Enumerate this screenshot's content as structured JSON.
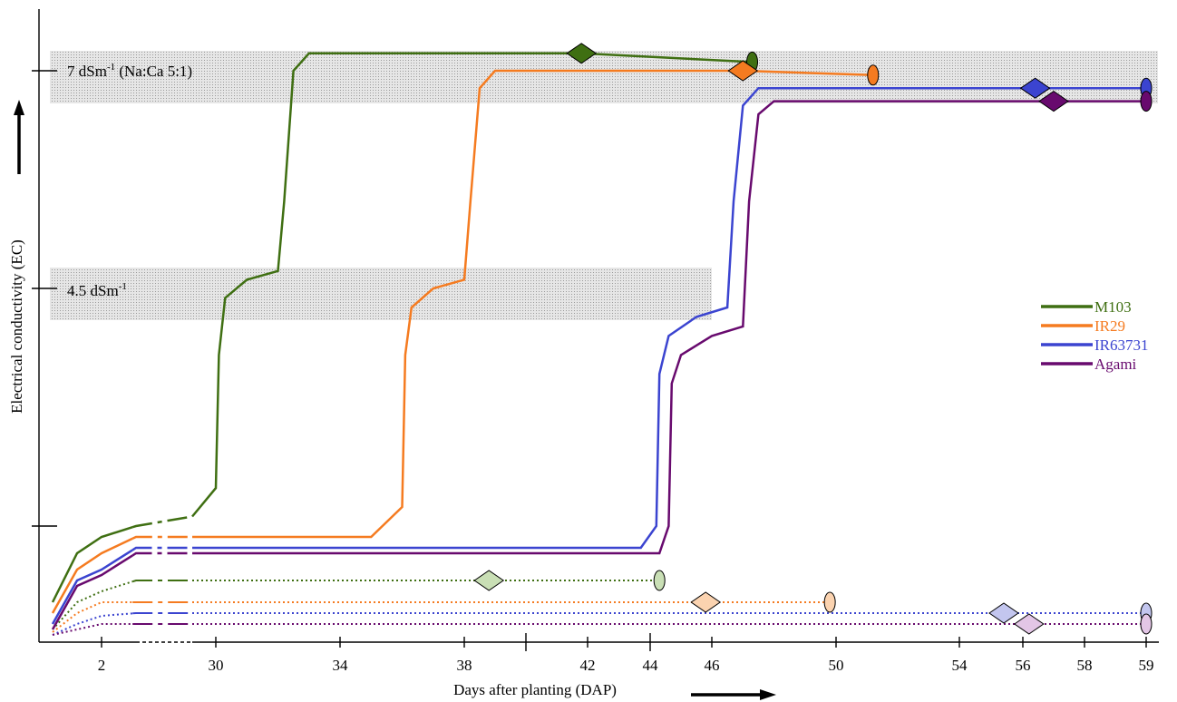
{
  "chart_data": {
    "type": "line",
    "xlabel": "Days after planting (DAP)",
    "ylabel": "Electrical conductivity (EC)",
    "x_ticks": [
      "2",
      "30",
      "34",
      "38",
      "42",
      "44",
      "46",
      "50",
      "54",
      "56",
      "58",
      "59"
    ],
    "bands": [
      {
        "label_main": "7 dSm",
        "label_sup": "-1",
        "label_suffix": " (Na:Ca 5:1)",
        "ec": 7
      },
      {
        "label_main": "4.5 dSm",
        "label_sup": "-1",
        "label_suffix": "",
        "ec": 4.5
      }
    ],
    "legend_placement": "right",
    "series": [
      {
        "name": "M103",
        "color": "#3f6f12",
        "light": "#c9dfb5",
        "stress_curve": [
          [
            0,
            0.6
          ],
          [
            1,
            1.5
          ],
          [
            2,
            1.8
          ],
          [
            3,
            2.0
          ],
          [
            29,
            2.1
          ],
          [
            30,
            2.4
          ],
          [
            30.1,
            3.8
          ],
          [
            30.3,
            4.4
          ],
          [
            31,
            4.6
          ],
          [
            32,
            4.7
          ],
          [
            32.2,
            5.5
          ],
          [
            32.5,
            7.0
          ],
          [
            33,
            7.2
          ],
          [
            41.8,
            7.2
          ],
          [
            47.3,
            7.1
          ]
        ],
        "stress_diamond": 41.8,
        "stress_end": 47.3,
        "control_curve": [
          [
            0,
            0.1
          ],
          [
            1,
            0.6
          ],
          [
            2,
            0.8
          ],
          [
            3,
            1.0
          ],
          [
            44.3,
            1.0
          ]
        ],
        "control_diamond": 38.8,
        "control_end": 44.3
      },
      {
        "name": "IR29",
        "color": "#f57b20",
        "light": "#fbd3b0",
        "stress_curve": [
          [
            0,
            0.4
          ],
          [
            1,
            1.2
          ],
          [
            2,
            1.5
          ],
          [
            3,
            1.8
          ],
          [
            35,
            1.8
          ],
          [
            36,
            2.2
          ],
          [
            36.1,
            3.8
          ],
          [
            36.3,
            4.3
          ],
          [
            37,
            4.5
          ],
          [
            38,
            4.6
          ],
          [
            38.2,
            5.5
          ],
          [
            38.5,
            6.8
          ],
          [
            39,
            7.0
          ],
          [
            47,
            7.0
          ],
          [
            51.2,
            6.95
          ]
        ],
        "stress_diamond": 47,
        "stress_end": 51.2,
        "control_curve": [
          [
            0,
            0.05
          ],
          [
            1,
            0.4
          ],
          [
            2,
            0.6
          ],
          [
            3,
            0.6
          ],
          [
            49.8,
            0.6
          ]
        ],
        "control_diamond": 45.8,
        "control_end": 49.8
      },
      {
        "name": "IR63731",
        "color": "#3b44d0",
        "light": "#c3c6ef",
        "stress_curve": [
          [
            0,
            0.2
          ],
          [
            1,
            1.0
          ],
          [
            2,
            1.2
          ],
          [
            3,
            1.6
          ],
          [
            43.7,
            1.6
          ],
          [
            44.2,
            2.0
          ],
          [
            44.3,
            3.6
          ],
          [
            44.6,
            4.0
          ],
          [
            45.5,
            4.2
          ],
          [
            46.5,
            4.3
          ],
          [
            46.7,
            5.5
          ],
          [
            47,
            6.6
          ],
          [
            47.5,
            6.8
          ],
          [
            56.4,
            6.8
          ],
          [
            59,
            6.8
          ]
        ],
        "stress_diamond": 56.4,
        "stress_end": 59,
        "control_curve": [
          [
            0,
            0.0
          ],
          [
            1,
            0.2
          ],
          [
            2,
            0.35
          ],
          [
            3,
            0.4
          ],
          [
            59,
            0.4
          ]
        ],
        "control_diamond": 55.4,
        "control_end": 59
      },
      {
        "name": "Agami",
        "color": "#680a6e",
        "light": "#e3c6e6",
        "stress_curve": [
          [
            0,
            0.1
          ],
          [
            1,
            0.9
          ],
          [
            2,
            1.1
          ],
          [
            3,
            1.5
          ],
          [
            44.3,
            1.5
          ],
          [
            44.6,
            2.0
          ],
          [
            44.7,
            3.5
          ],
          [
            45,
            3.8
          ],
          [
            46,
            4.0
          ],
          [
            47,
            4.1
          ],
          [
            47.2,
            5.5
          ],
          [
            47.5,
            6.5
          ],
          [
            48,
            6.65
          ],
          [
            57,
            6.65
          ],
          [
            59,
            6.65
          ]
        ],
        "stress_diamond": 57,
        "stress_end": 59,
        "control_curve": [
          [
            0,
            0.0
          ],
          [
            1,
            0.1
          ],
          [
            2,
            0.2
          ],
          [
            3,
            0.2
          ],
          [
            59,
            0.2
          ]
        ],
        "control_diamond": 56.2,
        "control_end": 59
      }
    ]
  }
}
